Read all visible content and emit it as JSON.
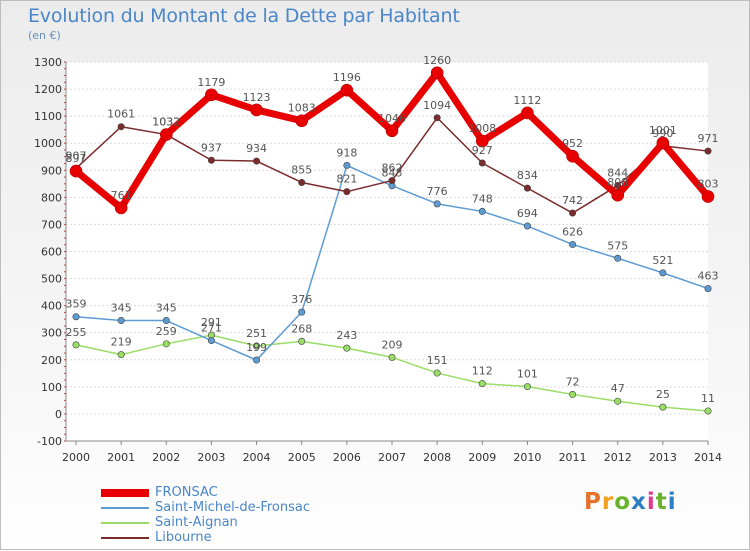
{
  "title": "Evolution du Montant de la Dette par Habitant",
  "subtitle": "(en €)",
  "logo": {
    "text": "Proxiti",
    "colors": [
      "#e8712a",
      "#f2a01f",
      "#6ab42d",
      "#2b7fc3",
      "#e03a8c",
      "#6ab42d",
      "#2b7fc3"
    ]
  },
  "chart_data": {
    "type": "line",
    "title": "Evolution du Montant de la Dette par Habitant",
    "ylabel": "(en €)",
    "x": [
      "2000",
      "2001",
      "2002",
      "2003",
      "2004",
      "2005",
      "2006",
      "2007",
      "2008",
      "2009",
      "2010",
      "2011",
      "2012",
      "2013",
      "2014"
    ],
    "ylim": [
      -100,
      1300
    ],
    "yticks": [
      "-100",
      "0",
      "100",
      "200",
      "300",
      "400",
      "500",
      "600",
      "700",
      "800",
      "900",
      "1000",
      "1100",
      "1200",
      "1300"
    ],
    "grid": true,
    "legend_position": "bottom-left",
    "series": [
      {
        "name": "FRONSAC",
        "color": "#e80000",
        "values": [
          897,
          761,
          1032,
          1179,
          1123,
          1083,
          1196,
          1046,
          1260,
          1008,
          1112,
          952,
          808,
          1001,
          803
        ]
      },
      {
        "name": "Saint-Michel-de-Fronsac",
        "color": "#5d9bd3",
        "values": [
          359,
          345,
          345,
          271,
          199,
          376,
          918,
          843,
          776,
          748,
          694,
          626,
          575,
          521,
          463
        ]
      },
      {
        "name": "Saint-Aignan",
        "color": "#99dd66",
        "values": [
          255,
          219,
          259,
          291,
          251,
          268,
          243,
          209,
          151,
          112,
          101,
          72,
          47,
          25,
          11
        ]
      },
      {
        "name": "Libourne",
        "color": "#7b2b2b",
        "values": [
          907,
          1061,
          1032,
          937,
          934,
          855,
          821,
          862,
          1094,
          927,
          834,
          742,
          844,
          990,
          971
        ]
      }
    ]
  }
}
